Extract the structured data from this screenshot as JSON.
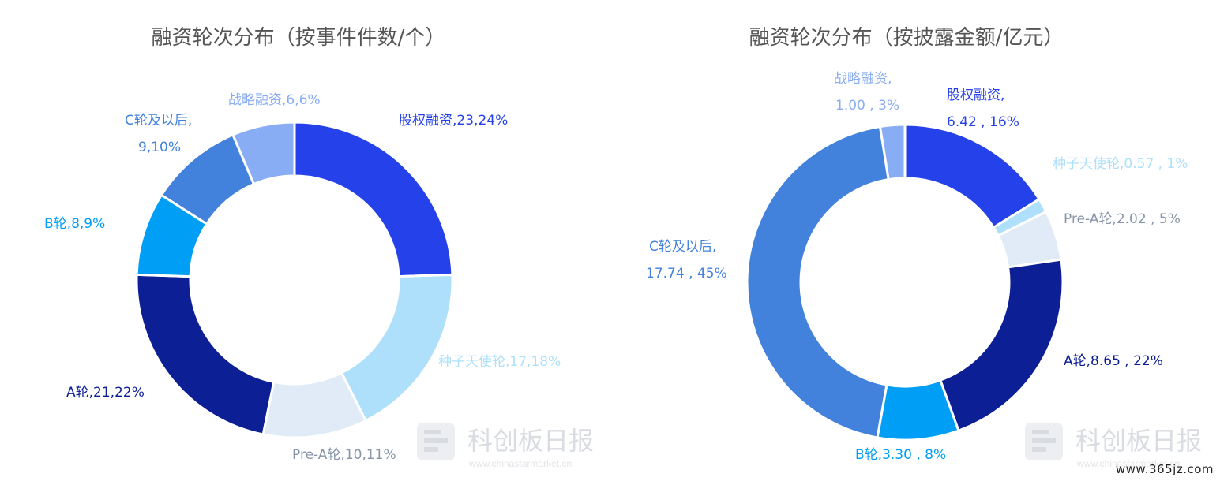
{
  "site_mark": "www.365jz.com",
  "watermark": {
    "title": "科创板日报",
    "url": "www.chinastarmarket.cn"
  },
  "chart_data": [
    {
      "type": "pie",
      "donut": true,
      "title": "融资轮次分布（按事件件数/个）",
      "start_angle_deg": 0,
      "slices": [
        {
          "name": "股权融资",
          "value": 23,
          "percent": "24%",
          "label": "股权融资,23,24%",
          "color": "#2541ea"
        },
        {
          "name": "种子天使轮",
          "value": 17,
          "percent": "18%",
          "label": "种子天使轮,17,18%",
          "color": "#aee0fc"
        },
        {
          "name": "Pre-A轮",
          "value": 10,
          "percent": "11%",
          "label": "Pre-A轮,10,11%",
          "color": "#e0ebf7"
        },
        {
          "name": "A轮",
          "value": 21,
          "percent": "22%",
          "label": "A轮,21,22%",
          "color": "#0d1f95"
        },
        {
          "name": "B轮",
          "value": 8,
          "percent": "9%",
          "label": "B轮,8,9%",
          "color": "#009ff5"
        },
        {
          "name": "C轮及以后",
          "value": 9,
          "percent": "10%",
          "label": [
            "C轮及以后,",
            "9,10%"
          ],
          "color": "#4282dd"
        },
        {
          "name": "战略融资",
          "value": 6,
          "percent": "6%",
          "label": "战略融资,6,6%",
          "color": "#88adf4"
        }
      ]
    },
    {
      "type": "pie",
      "donut": true,
      "title": "融资轮次分布（按披露金额/亿元）",
      "start_angle_deg": 0,
      "slices": [
        {
          "name": "股权融资",
          "value": 6.42,
          "percent": "16%",
          "label": [
            "股权融资,",
            "6.42 , 16%"
          ],
          "color": "#2541ea"
        },
        {
          "name": "种子天使轮",
          "value": 0.57,
          "percent": "1%",
          "label": "种子天使轮,0.57 , 1%",
          "color": "#aee0fc"
        },
        {
          "name": "Pre-A轮",
          "value": 2.02,
          "percent": "5%",
          "label": "Pre-A轮,2.02 , 5%",
          "color": "#e0ebf7"
        },
        {
          "name": "A轮",
          "value": 8.65,
          "percent": "22%",
          "label": "A轮,8.65 , 22%",
          "color": "#0d1f95"
        },
        {
          "name": "B轮",
          "value": 3.3,
          "percent": "8%",
          "label": "B轮,3.30 , 8%",
          "color": "#009ff5"
        },
        {
          "name": "C轮及以后",
          "value": 17.74,
          "percent": "45%",
          "label": [
            "C轮及以后,",
            "17.74 , 45%"
          ],
          "color": "#4282dd"
        },
        {
          "name": "战略融资",
          "value": 1.0,
          "percent": "3%",
          "label": [
            "战略融资,",
            "1.00 , 3%"
          ],
          "color": "#88adf4"
        }
      ]
    }
  ]
}
